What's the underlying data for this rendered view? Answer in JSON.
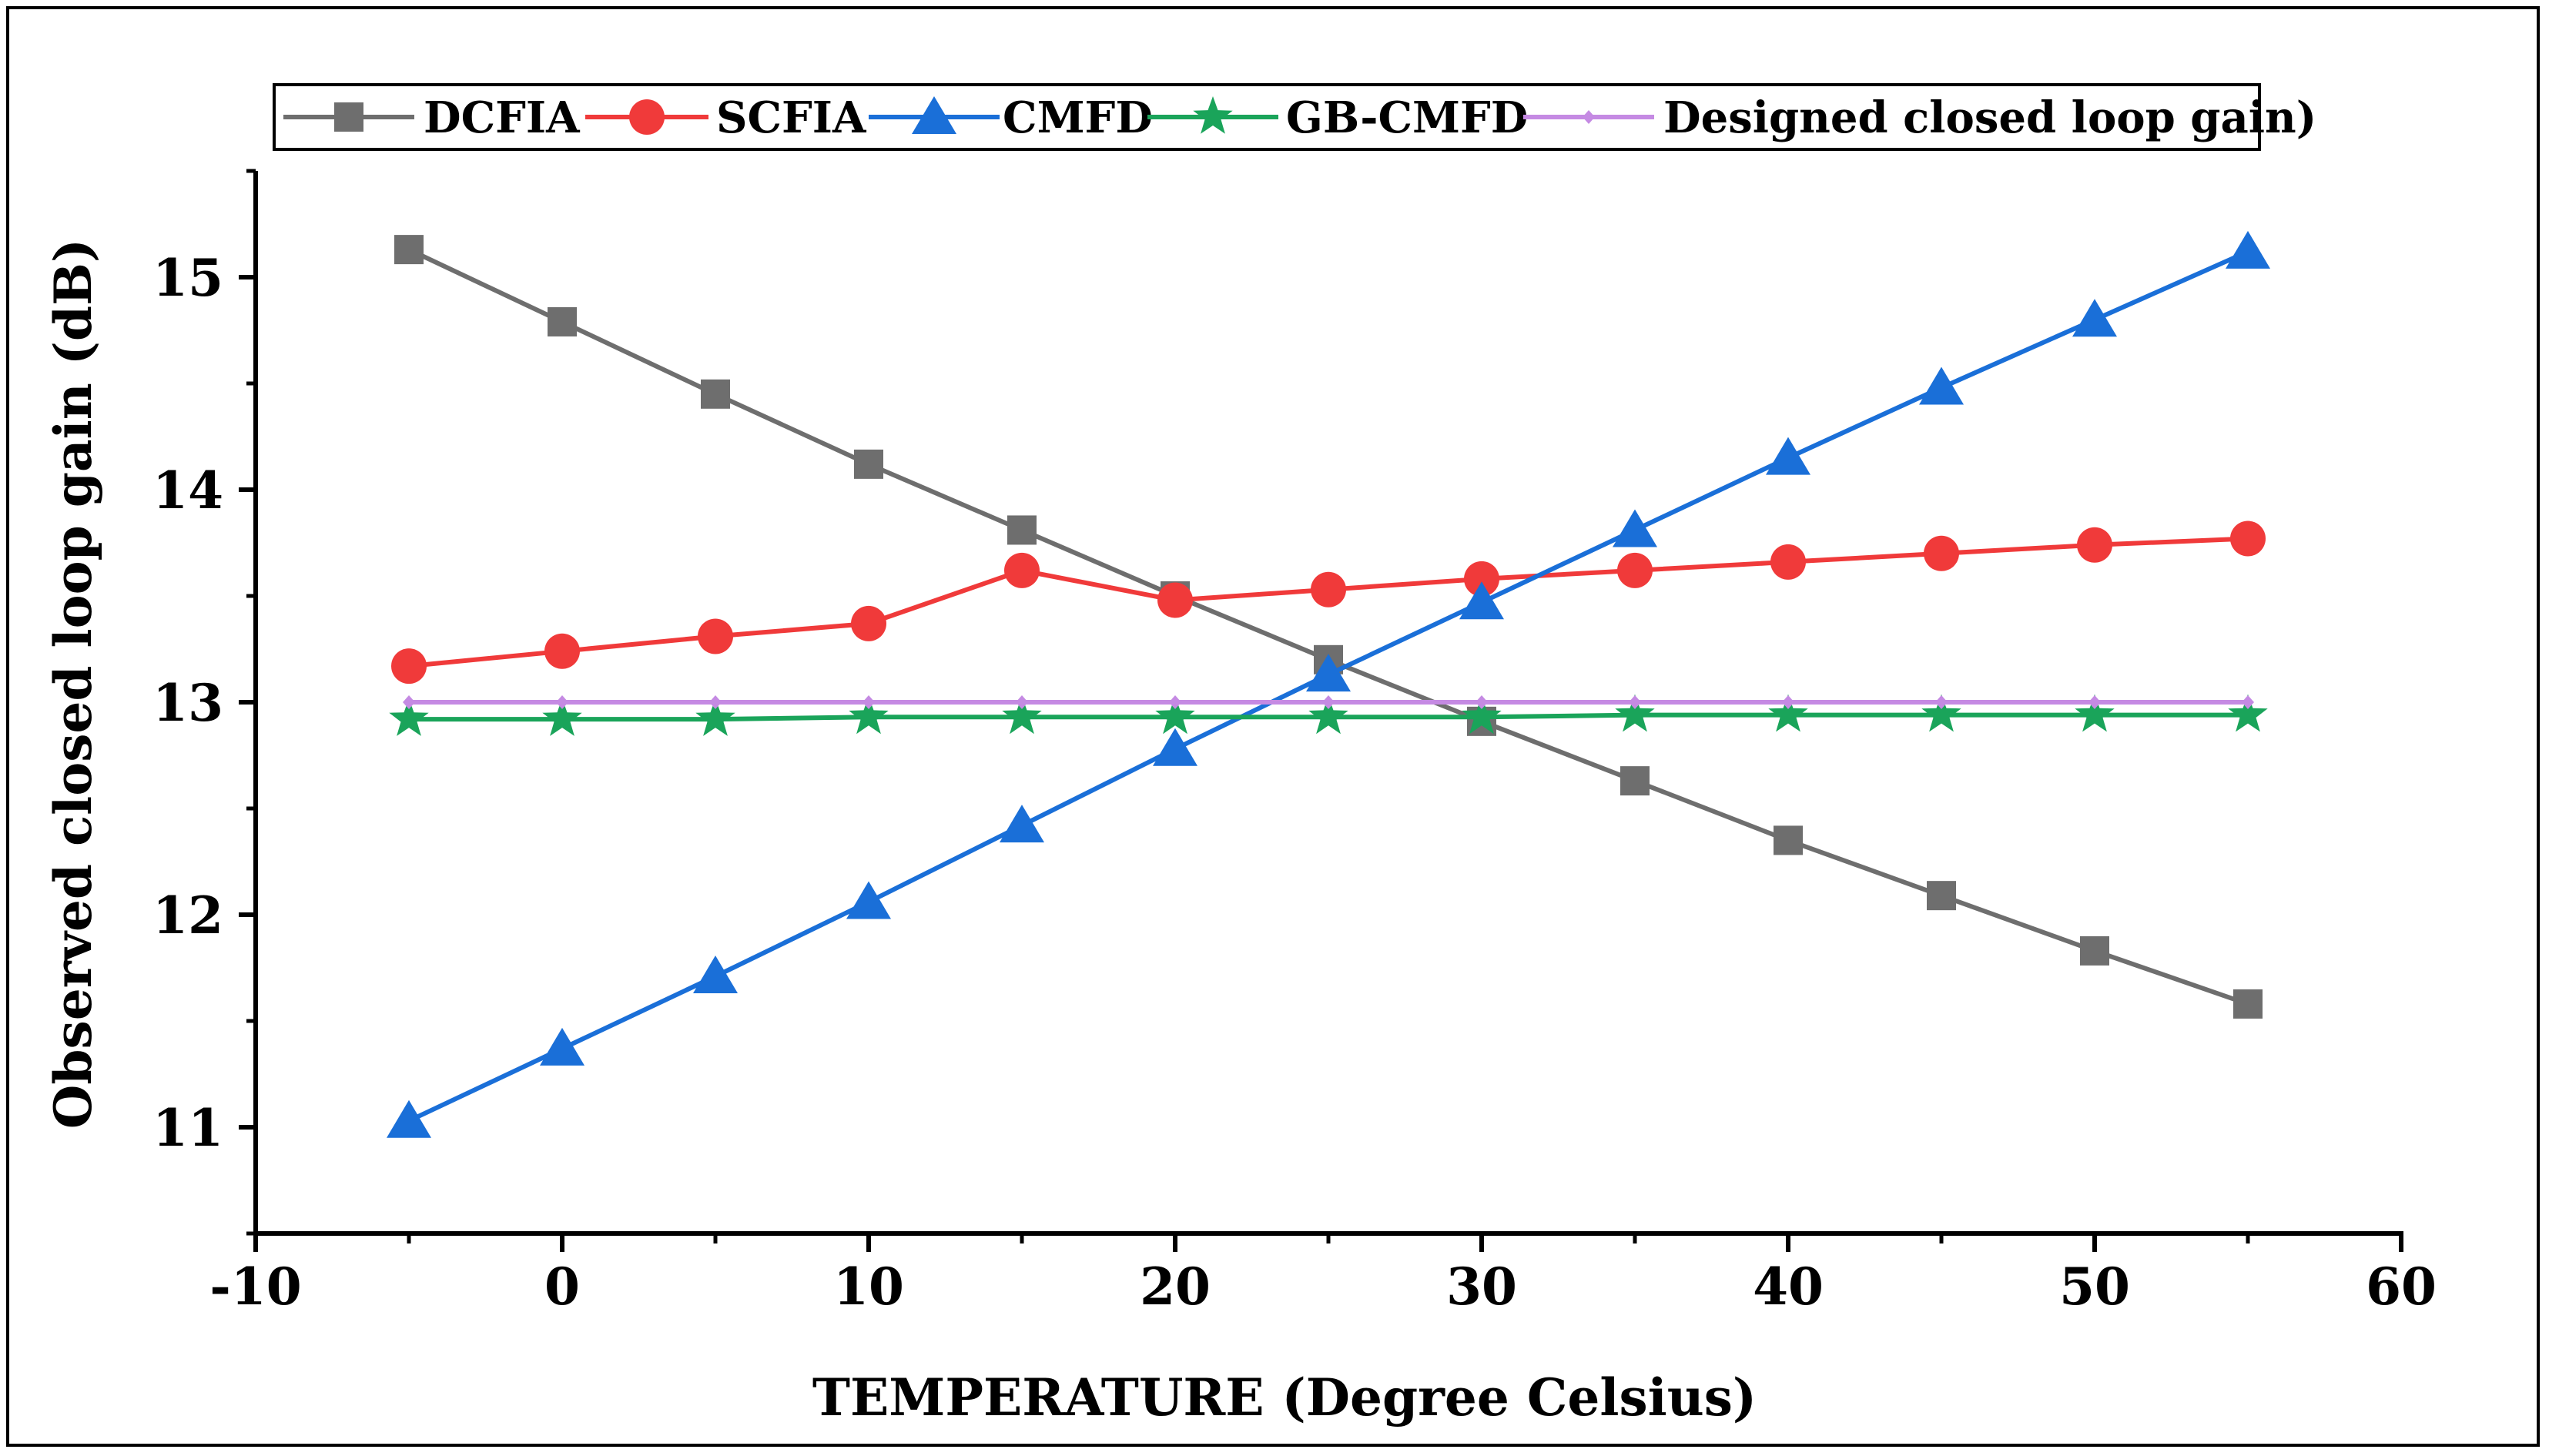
{
  "chart_data": {
    "type": "line",
    "title": "",
    "xlabel": "TEMPERATURE (Degree Celsius)",
    "ylabel": "Observed closed loop gain (dB)",
    "xlim": [
      -10,
      60
    ],
    "ylim": [
      10.5,
      15.5
    ],
    "xticks": [
      -10,
      0,
      10,
      20,
      30,
      40,
      50,
      60
    ],
    "yticks": [
      11,
      12,
      13,
      14,
      15
    ],
    "x": [
      -5,
      0,
      5,
      10,
      15,
      20,
      25,
      30,
      35,
      40,
      45,
      50,
      55
    ],
    "legend_position": "top",
    "series": [
      {
        "name": "DCFIA",
        "color": "#6e6e6e",
        "marker": "square",
        "values": [
          15.13,
          14.79,
          14.45,
          14.12,
          13.81,
          13.5,
          13.2,
          12.91,
          12.63,
          12.35,
          12.09,
          11.83,
          11.58
        ]
      },
      {
        "name": "SCFIA",
        "color": "#f03a3a",
        "marker": "circle",
        "values": [
          13.17,
          13.24,
          13.31,
          13.37,
          13.62,
          13.48,
          13.53,
          13.58,
          13.62,
          13.66,
          13.7,
          13.74,
          13.77
        ]
      },
      {
        "name": "CMFD",
        "color": "#1a6fd8",
        "marker": "triangle",
        "values": [
          11.03,
          11.37,
          11.71,
          12.06,
          12.42,
          12.78,
          13.13,
          13.47,
          13.81,
          14.15,
          14.48,
          14.8,
          15.12
        ]
      },
      {
        "name": "GB-CMFD",
        "color": "#1aa45a",
        "marker": "star",
        "values": [
          12.92,
          12.92,
          12.92,
          12.93,
          12.93,
          12.93,
          12.93,
          12.93,
          12.94,
          12.94,
          12.94,
          12.94,
          12.94
        ]
      },
      {
        "name": "Designed closed loop gain)",
        "color": "#c58ae3",
        "marker": "diamond",
        "values": [
          13.0,
          13.0,
          13.0,
          13.0,
          13.0,
          13.0,
          13.0,
          13.0,
          13.0,
          13.0,
          13.0,
          13.0,
          13.0
        ]
      }
    ]
  }
}
